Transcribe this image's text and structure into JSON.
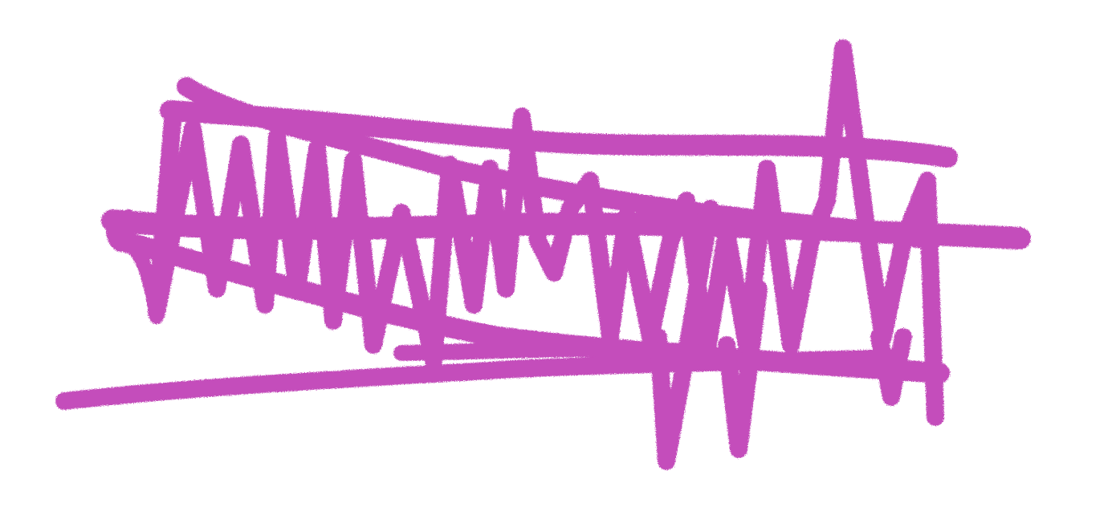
{
  "drawing": {
    "subject": "scribble-drawing",
    "stroke_color": "#c44ebb",
    "background_color": "#ffffff"
  }
}
